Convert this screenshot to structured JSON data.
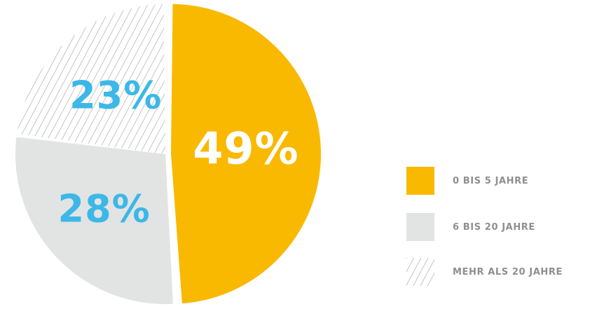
{
  "chart_data": {
    "type": "pie",
    "title": "",
    "slices": [
      {
        "label": "0 BIS 5 JAHRE",
        "value": 49,
        "display": "49%",
        "color": "#F9B900",
        "pattern": "solid"
      },
      {
        "label": "6 BIS 20 JAHRE",
        "value": 28,
        "display": "28%",
        "color": "#E2E3E3",
        "pattern": "solid"
      },
      {
        "label": "MEHR ALS 20 JAHRE",
        "value": 23,
        "display": "23%",
        "color": "#B5B5B5",
        "pattern": "hatched"
      }
    ],
    "label_colors": {
      "on_accent": "#FFFFFF",
      "on_neutral": "#3BB8E8"
    },
    "legend_position": "right"
  }
}
